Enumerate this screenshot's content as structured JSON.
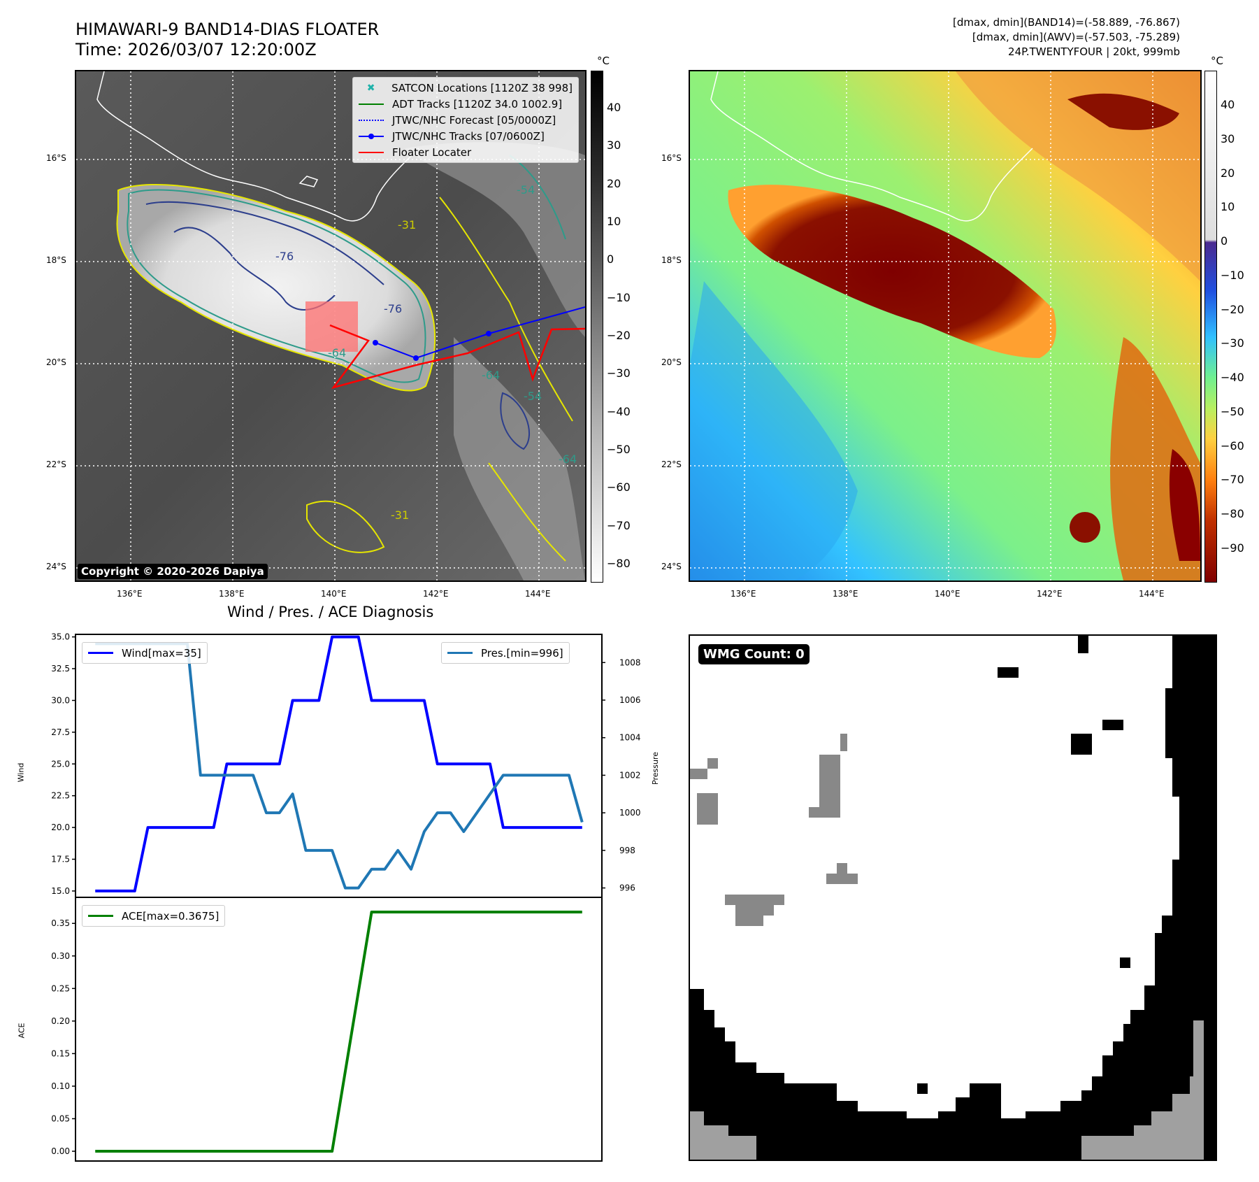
{
  "header": {
    "title_line1": "HIMAWARI-9 BAND14-DIAS FLOATER",
    "title_line2": "Time: 2026/03/07 12:20:00Z",
    "info_line1": "[dmax, dmin](BAND14)=(-58.889, -76.867)",
    "info_line2": "[dmax, dmin](AWV)=(-57.503, -75.289)",
    "info_line3": "24P.TWENTYFOUR | 20kt, 999mb"
  },
  "map": {
    "lat_labels": [
      "16°S",
      "18°S",
      "20°S",
      "22°S",
      "24°S"
    ],
    "lon_labels": [
      "136°E",
      "138°E",
      "140°E",
      "142°E",
      "144°E"
    ],
    "copyright": "Copyright © 2020-2026 Dapiya",
    "contour_labels": [
      "-76",
      "-76",
      "-64",
      "-54",
      "-31",
      "-64",
      "-54",
      "-64",
      "-31"
    ],
    "legend": [
      {
        "label": "SATCON Locations [1120Z 38 998]",
        "color": "#20b2aa",
        "style": "x"
      },
      {
        "label": "ADT Tracks [1120Z 34.0 1002.9]",
        "color": "#008000",
        "style": "solid"
      },
      {
        "label": "JTWC/NHC Forecast [05/0000Z]",
        "color": "#0000ff",
        "style": "dotted"
      },
      {
        "label": "JTWC/NHC Tracks [07/0600Z]",
        "color": "#0000ff",
        "style": "solid-dot"
      },
      {
        "label": "Floater Locater",
        "color": "#ff0000",
        "style": "solid"
      }
    ]
  },
  "colorbar_left": {
    "unit": "°C",
    "ticks": [
      "40",
      "30",
      "20",
      "10",
      "0",
      "−10",
      "−20",
      "−30",
      "−40",
      "−50",
      "−60",
      "−70",
      "−80"
    ]
  },
  "colorbar_right": {
    "unit": "°C",
    "ticks": [
      "40",
      "30",
      "20",
      "10",
      "0",
      "−10",
      "−20",
      "−30",
      "−40",
      "−50",
      "−60",
      "−70",
      "−80",
      "−90"
    ]
  },
  "diagnosis": {
    "title": "Wind / Pres. / ACE Diagnosis",
    "wind_ylabel": "Wind",
    "pres_ylabel": "Pressure",
    "ace_ylabel": "ACE",
    "wind_legend": "Wind[max=35]",
    "pres_legend": "Pres.[min=996]",
    "ace_legend": "ACE[max=0.3675]",
    "wind_ticks": [
      "35.0",
      "32.5",
      "30.0",
      "27.5",
      "25.0",
      "22.5",
      "20.0",
      "17.5",
      "15.0"
    ],
    "pres_ticks": [
      "1008",
      "1006",
      "1004",
      "1002",
      "1000",
      "998",
      "996"
    ],
    "ace_ticks": [
      "0.35",
      "0.30",
      "0.25",
      "0.20",
      "0.15",
      "0.10",
      "0.05",
      "0.00"
    ]
  },
  "chart_data": [
    {
      "type": "line",
      "title": "Wind / Pres. / ACE Diagnosis",
      "ylabel": "Wind",
      "ylim": [
        14.5,
        35.2
      ],
      "series": [
        {
          "name": "Wind[max=35]",
          "color": "#0000ff",
          "x": [
            0,
            1,
            2,
            3,
            4,
            5,
            6,
            7,
            8,
            9,
            10,
            11,
            12,
            13,
            14,
            15,
            16,
            17,
            18,
            19,
            20,
            21,
            22,
            23,
            24,
            25,
            26,
            27,
            28,
            29,
            30,
            31,
            32,
            33,
            34,
            35,
            36,
            37
          ],
          "values": [
            15,
            15,
            15,
            15,
            20,
            20,
            20,
            20,
            20,
            20,
            25,
            25,
            25,
            25,
            25,
            30,
            30,
            30,
            35,
            35,
            35,
            30,
            30,
            30,
            30,
            30,
            25,
            25,
            25,
            25,
            25,
            20,
            20,
            20,
            20,
            20,
            20,
            20
          ]
        }
      ]
    },
    {
      "type": "line",
      "ylabel": "Pressure",
      "ylim": [
        995.5,
        1009.5
      ],
      "series": [
        {
          "name": "Pres.[min=996]",
          "color": "#1f77b4",
          "x": [
            0,
            1,
            2,
            3,
            4,
            5,
            6,
            7,
            8,
            9,
            10,
            11,
            12,
            13,
            14,
            15,
            16,
            17,
            18,
            19,
            20,
            21,
            22,
            23,
            24,
            25,
            26,
            27,
            28,
            29,
            30,
            31,
            32,
            33,
            34,
            35,
            36,
            37
          ],
          "values": [
            1009,
            1009,
            1009,
            1009,
            1009,
            1009,
            1009,
            1009,
            1002,
            1002,
            1002,
            1002,
            1002,
            1000,
            1000,
            1001,
            998,
            998,
            998,
            996,
            996,
            997,
            997,
            998,
            997,
            999,
            1000,
            1000,
            999,
            1000,
            1001,
            1002,
            1002,
            1002,
            1002,
            1002,
            1002,
            999.5
          ]
        }
      ]
    },
    {
      "type": "line",
      "ylabel": "ACE",
      "ylim": [
        -0.015,
        0.39
      ],
      "series": [
        {
          "name": "ACE[max=0.3675]",
          "color": "#008000",
          "x": [
            0,
            18,
            21,
            37
          ],
          "values": [
            0,
            0,
            0.3675,
            0.3675
          ]
        }
      ]
    }
  ],
  "wmg": {
    "badge": "WMG Count: 0"
  }
}
